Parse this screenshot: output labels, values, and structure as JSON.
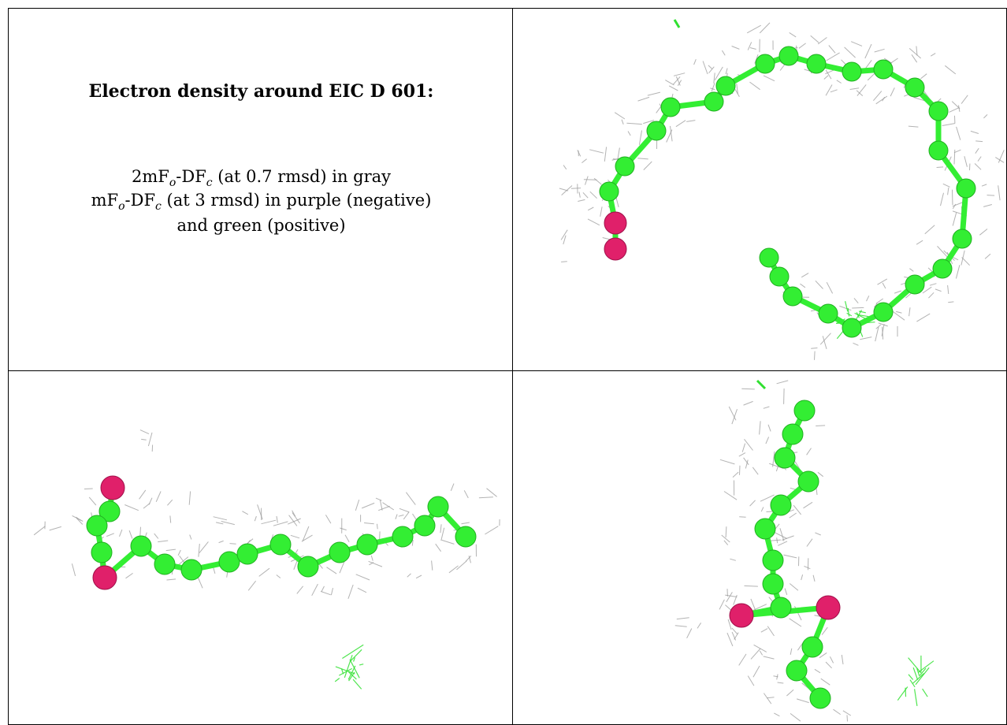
{
  "caption": {
    "title": "Electron density around EIC D 601:",
    "line1": {
      "prefix": "2mF",
      "sub1": "o",
      "mid": "-DF",
      "sub2": "c",
      "suffix": " (at 0.7 rmsd) in gray"
    },
    "line2": {
      "prefix": "mF",
      "sub1": "o",
      "mid": "-DF",
      "sub2": "c",
      "suffix": " (at 3 rmsd) in purple (negative)"
    },
    "line3": "and green (positive)"
  },
  "colors": {
    "carbon": "#33ee33",
    "oxygen": "#e0206a",
    "mesh_gray": "#9a9a9a",
    "mesh_green": "#30e030"
  },
  "views": [
    {
      "name": "top-right-view"
    },
    {
      "name": "bottom-left-view"
    },
    {
      "name": "bottom-right-view"
    }
  ]
}
